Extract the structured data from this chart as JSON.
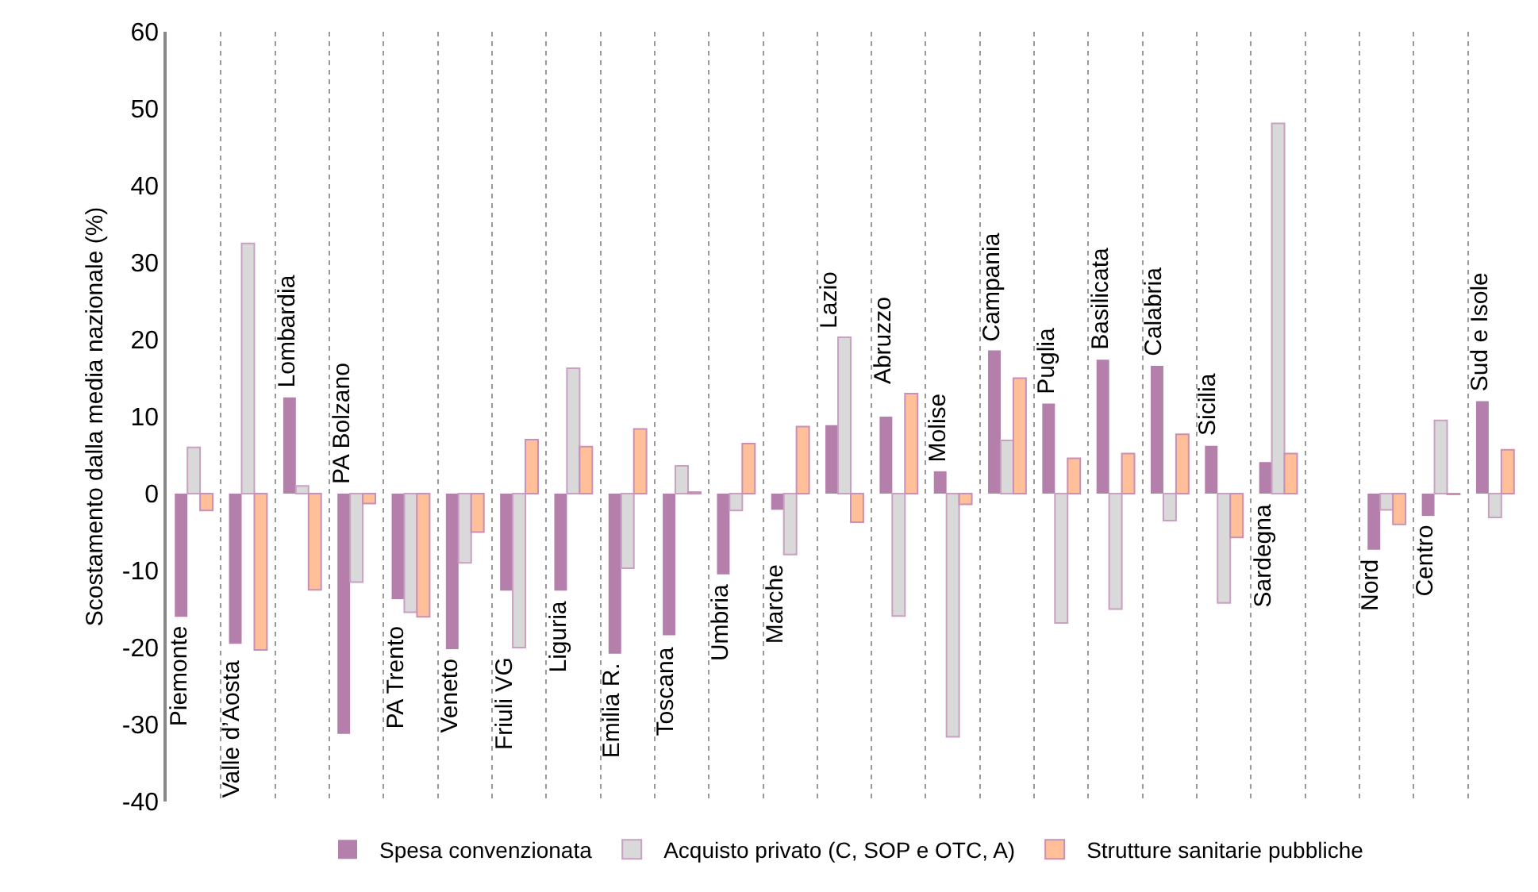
{
  "chart_data": {
    "type": "bar",
    "ylabel": "Scostamento dalla media nazionale (%)",
    "categories": [
      "Piemonte",
      "Valle d’Aosta",
      "Lombardia",
      "PA Bolzano",
      "PA Trento",
      "Veneto",
      "Friuli VG",
      "Liguria",
      "Emilia R.",
      "Toscana",
      "Umbria",
      "Marche",
      "Lazio",
      "Abruzzo",
      "Molise",
      "Campania",
      "Puglia",
      "Basilicata",
      "Calabria",
      "Sicilia",
      "Sardegna",
      null,
      "Nord",
      "Centro",
      "Sud e Isole"
    ],
    "series": [
      {
        "name": "Spesa convenzionata",
        "color": "#b57fab",
        "values": [
          -16,
          -19.5,
          12.5,
          -31.2,
          -13.7,
          -20.2,
          -12.6,
          -12.6,
          -20.8,
          -18.4,
          -10.5,
          -2.1,
          8.9,
          10,
          2.9,
          18.6,
          11.7,
          17.4,
          16.6,
          6.2,
          4.1,
          null,
          -7.3,
          -2.9,
          12
        ]
      },
      {
        "name": "Acquisto privato (C, SOP e OTC, A)",
        "color": "#d9d9d9",
        "values": [
          6,
          32.5,
          1,
          -11.5,
          -15.4,
          -9,
          -20,
          16.3,
          -9.7,
          3.6,
          -2.2,
          -7.9,
          20.3,
          -15.9,
          -31.6,
          6.9,
          -16.8,
          -15,
          -3.5,
          -14.2,
          48.1,
          null,
          -2.1,
          9.5,
          -3.1
        ]
      },
      {
        "name": "Strutture sanitarie pubbliche",
        "color": "#ffbf99",
        "values": [
          -2.2,
          -20.3,
          -12.5,
          -1.3,
          -16,
          -5,
          7,
          6.1,
          8.4,
          0.2,
          6.5,
          8.7,
          -3.7,
          13,
          -1.4,
          15,
          4.6,
          5.2,
          7.7,
          -5.7,
          5.2,
          null,
          -4,
          -0.1,
          5.7
        ]
      }
    ],
    "ylim": [
      -40,
      60
    ],
    "yticks": [
      -40,
      -30,
      -20,
      -10,
      0,
      10,
      20,
      30,
      40,
      50,
      60
    ],
    "grid": "x",
    "legend": "bottom",
    "tick_labels": "y"
  }
}
